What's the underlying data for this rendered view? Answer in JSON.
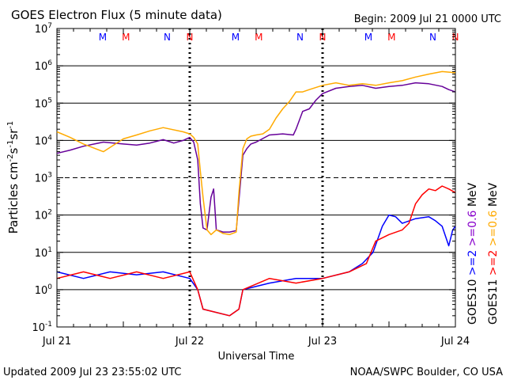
{
  "chart_data": {
    "type": "line",
    "title": "GOES Electron Flux (5 minute data)",
    "begin_label": "Begin: 2009 Jul 21 0000 UTC",
    "xlabel": "Universal Time",
    "ylabel": "Particles cm^-2 s^-1 sr^-1",
    "xlim": [
      0,
      3
    ],
    "x_ticks": [
      {
        "x": 0,
        "label": "Jul 21"
      },
      {
        "x": 1,
        "label": "Jul 22"
      },
      {
        "x": 2,
        "label": "Jul 23"
      },
      {
        "x": 3,
        "label": "Jul 24"
      }
    ],
    "y_scale": "log",
    "ylim": [
      0.1,
      10000000
    ],
    "y_ticks": [
      {
        "base": "10",
        "exp": "-1",
        "value": 0.1
      },
      {
        "base": "10",
        "exp": "0",
        "value": 1
      },
      {
        "base": "10",
        "exp": "1",
        "value": 10
      },
      {
        "base": "10",
        "exp": "2",
        "value": 100
      },
      {
        "base": "10",
        "exp": "3",
        "value": 1000
      },
      {
        "base": "10",
        "exp": "4",
        "value": 10000
      },
      {
        "base": "10",
        "exp": "5",
        "value": 100000
      },
      {
        "base": "10",
        "exp": "6",
        "value": 1000000
      },
      {
        "base": "10",
        "exp": "7",
        "value": 10000000
      }
    ],
    "gridlines": [
      1,
      10,
      100,
      1000,
      10000,
      100000,
      1000000
    ],
    "dashed_gridline": 1000,
    "local_time_markers": [
      {
        "x": 0.345,
        "label": "M",
        "sat": "GOES10"
      },
      {
        "x": 0.52,
        "label": "M",
        "sat": "GOES11"
      },
      {
        "x": 0.83,
        "label": "N",
        "sat": "GOES10"
      },
      {
        "x": 1.0,
        "label": "N",
        "sat": "GOES11"
      },
      {
        "x": 1.345,
        "label": "M",
        "sat": "GOES10"
      },
      {
        "x": 1.52,
        "label": "M",
        "sat": "GOES11"
      },
      {
        "x": 1.83,
        "label": "N",
        "sat": "GOES10"
      },
      {
        "x": 2.0,
        "label": "N",
        "sat": "GOES11"
      },
      {
        "x": 2.345,
        "label": "M",
        "sat": "GOES10"
      },
      {
        "x": 2.52,
        "label": "M",
        "sat": "GOES11"
      },
      {
        "x": 2.83,
        "label": "N",
        "sat": "GOES10"
      },
      {
        "x": 3.0,
        "label": "N",
        "sat": "GOES11"
      }
    ],
    "day_markers": [
      1,
      2
    ],
    "legend": [
      {
        "text": ">=2",
        "color": "#0000ff"
      },
      {
        "text": ">=0.6",
        "color": "#8800cc"
      },
      {
        "text": "MeV",
        "color": "#000000"
      },
      {
        "text": "GOES10",
        "color": "#000000"
      },
      {
        "text": ">=2",
        "color": "#ff0000"
      },
      {
        "text": ">=0.6",
        "color": "#ffaa00"
      },
      {
        "text": "MeV",
        "color": "#000000"
      },
      {
        "text": "GOES11",
        "color": "#000000"
      }
    ],
    "series": [
      {
        "name": "GOES10 >=0.6 MeV",
        "color": "#660099",
        "points": [
          [
            0,
            4500
          ],
          [
            0.1,
            5500
          ],
          [
            0.2,
            7000
          ],
          [
            0.35,
            9000
          ],
          [
            0.5,
            8000
          ],
          [
            0.6,
            7500
          ],
          [
            0.7,
            8500
          ],
          [
            0.8,
            10500
          ],
          [
            0.88,
            8500
          ],
          [
            0.95,
            10000
          ],
          [
            1.0,
            12000
          ],
          [
            1.03,
            9000
          ],
          [
            1.06,
            3000
          ],
          [
            1.08,
            200
          ],
          [
            1.1,
            45
          ],
          [
            1.13,
            40
          ],
          [
            1.16,
            300
          ],
          [
            1.18,
            500
          ],
          [
            1.2,
            40
          ],
          [
            1.25,
            35
          ],
          [
            1.3,
            35
          ],
          [
            1.35,
            38
          ],
          [
            1.4,
            4000
          ],
          [
            1.43,
            6000
          ],
          [
            1.46,
            8000
          ],
          [
            1.5,
            9000
          ],
          [
            1.6,
            14000
          ],
          [
            1.7,
            15000
          ],
          [
            1.78,
            14000
          ],
          [
            1.8,
            20000
          ],
          [
            1.85,
            60000
          ],
          [
            1.9,
            70000
          ],
          [
            1.95,
            120000
          ],
          [
            2.0,
            180000
          ],
          [
            2.1,
            250000
          ],
          [
            2.2,
            280000
          ],
          [
            2.3,
            300000
          ],
          [
            2.4,
            250000
          ],
          [
            2.5,
            280000
          ],
          [
            2.6,
            300000
          ],
          [
            2.7,
            350000
          ],
          [
            2.8,
            330000
          ],
          [
            2.9,
            280000
          ],
          [
            2.95,
            230000
          ],
          [
            3.0,
            200000
          ]
        ]
      },
      {
        "name": "GOES11 >=0.6 MeV",
        "color": "#ffaa00",
        "points": [
          [
            0,
            17000
          ],
          [
            0.1,
            12000
          ],
          [
            0.2,
            8000
          ],
          [
            0.35,
            5000
          ],
          [
            0.5,
            11000
          ],
          [
            0.6,
            14000
          ],
          [
            0.7,
            18000
          ],
          [
            0.8,
            22000
          ],
          [
            0.95,
            17000
          ],
          [
            1.0,
            15000
          ],
          [
            1.03,
            12000
          ],
          [
            1.06,
            8000
          ],
          [
            1.08,
            1500
          ],
          [
            1.1,
            300
          ],
          [
            1.13,
            40
          ],
          [
            1.16,
            30
          ],
          [
            1.2,
            40
          ],
          [
            1.25,
            32
          ],
          [
            1.3,
            30
          ],
          [
            1.35,
            35
          ],
          [
            1.37,
            400
          ],
          [
            1.4,
            6000
          ],
          [
            1.43,
            11000
          ],
          [
            1.46,
            13000
          ],
          [
            1.5,
            14000
          ],
          [
            1.55,
            15000
          ],
          [
            1.6,
            20000
          ],
          [
            1.65,
            40000
          ],
          [
            1.7,
            70000
          ],
          [
            1.75,
            110000
          ],
          [
            1.8,
            200000
          ],
          [
            1.85,
            200000
          ],
          [
            1.9,
            230000
          ],
          [
            2.0,
            300000
          ],
          [
            2.1,
            350000
          ],
          [
            2.2,
            300000
          ],
          [
            2.3,
            330000
          ],
          [
            2.4,
            300000
          ],
          [
            2.5,
            350000
          ],
          [
            2.6,
            400000
          ],
          [
            2.7,
            500000
          ],
          [
            2.8,
            600000
          ],
          [
            2.9,
            700000
          ],
          [
            3.0,
            650000
          ]
        ]
      },
      {
        "name": "GOES10 >=2 MeV",
        "color": "#0000ff",
        "points": [
          [
            0,
            3
          ],
          [
            0.2,
            2
          ],
          [
            0.4,
            3
          ],
          [
            0.6,
            2.5
          ],
          [
            0.8,
            3
          ],
          [
            1.0,
            2
          ],
          [
            1.06,
            1
          ],
          [
            1.1,
            0.3
          ],
          [
            1.3,
            0.2
          ],
          [
            1.37,
            0.3
          ],
          [
            1.4,
            1
          ],
          [
            1.6,
            1.5
          ],
          [
            1.8,
            2
          ],
          [
            2.0,
            2
          ],
          [
            2.2,
            3
          ],
          [
            2.3,
            5
          ],
          [
            2.38,
            10
          ],
          [
            2.45,
            50
          ],
          [
            2.5,
            100
          ],
          [
            2.55,
            90
          ],
          [
            2.6,
            60
          ],
          [
            2.7,
            80
          ],
          [
            2.8,
            90
          ],
          [
            2.85,
            70
          ],
          [
            2.9,
            50
          ],
          [
            2.95,
            15
          ],
          [
            2.98,
            40
          ],
          [
            3.0,
            50
          ]
        ]
      },
      {
        "name": "GOES11 >=2 MeV",
        "color": "#ff0000",
        "points": [
          [
            0,
            2
          ],
          [
            0.2,
            3
          ],
          [
            0.4,
            2
          ],
          [
            0.6,
            3
          ],
          [
            0.8,
            2
          ],
          [
            1.0,
            3
          ],
          [
            1.06,
            1
          ],
          [
            1.1,
            0.3
          ],
          [
            1.3,
            0.2
          ],
          [
            1.37,
            0.3
          ],
          [
            1.4,
            1
          ],
          [
            1.6,
            2
          ],
          [
            1.8,
            1.5
          ],
          [
            2.0,
            2
          ],
          [
            2.2,
            3
          ],
          [
            2.33,
            5
          ],
          [
            2.4,
            20
          ],
          [
            2.5,
            30
          ],
          [
            2.6,
            40
          ],
          [
            2.65,
            60
          ],
          [
            2.7,
            200
          ],
          [
            2.75,
            350
          ],
          [
            2.8,
            500
          ],
          [
            2.85,
            450
          ],
          [
            2.9,
            600
          ],
          [
            2.95,
            500
          ],
          [
            3.0,
            400
          ]
        ]
      }
    ]
  },
  "footer": {
    "updated": "Updated 2009 Jul 23 23:55:02 UTC",
    "source": "NOAA/SWPC Boulder, CO USA"
  }
}
